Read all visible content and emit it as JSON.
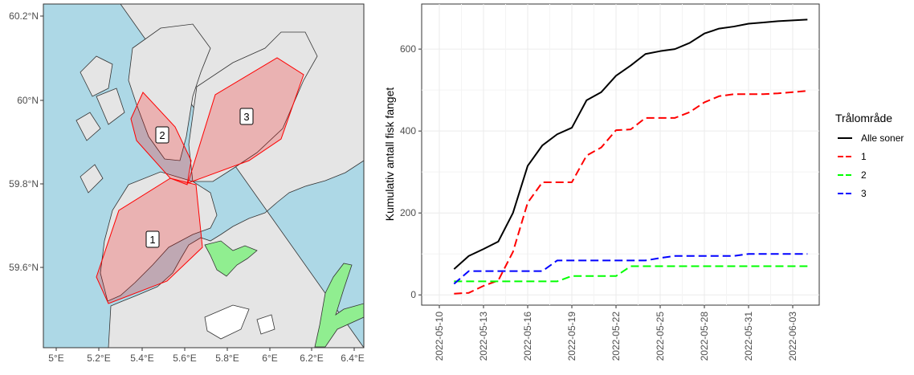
{
  "map": {
    "lat_ticks": [
      "60.2°N",
      "60°N",
      "59.8°N",
      "59.6°N"
    ],
    "lon_ticks": [
      "5°E",
      "5.2°E",
      "5.4°E",
      "5.6°E",
      "5.8°E",
      "6°E",
      "6.2°E",
      "6.4°E"
    ],
    "zones": [
      {
        "label": "1"
      },
      {
        "label": "2"
      },
      {
        "label": "3"
      }
    ],
    "colors": {
      "sea": "#add8e6",
      "land": "#e5e5e5",
      "zone_fill": "#e8a0a0",
      "zone_stroke": "#ff0000",
      "green": "#90ee90"
    }
  },
  "chart_data": {
    "type": "line",
    "title": "",
    "xlabel": "",
    "ylabel": "Kumulativ antall fisk fanget",
    "x_ticks": [
      "2022-05-10",
      "2022-05-13",
      "2022-05-16",
      "2022-05-19",
      "2022-05-22",
      "2022-05-25",
      "2022-05-28",
      "2022-05-31",
      "2022-06-03"
    ],
    "y_ticks": [
      0,
      200,
      400,
      600
    ],
    "xlim": [
      -1.2,
      25.8
    ],
    "ylim": [
      -25,
      710
    ],
    "legend": {
      "title": "Trålområde",
      "position": "right"
    },
    "series": [
      {
        "name": "Alle soner",
        "color": "#000000",
        "dash": "solid",
        "x": [
          1,
          2,
          3,
          4,
          5,
          6,
          7,
          8,
          9,
          10,
          11,
          12,
          13,
          14,
          15,
          16,
          17,
          18,
          19,
          20,
          21,
          22,
          23,
          24,
          25
        ],
        "y": [
          63,
          95,
          112,
          130,
          200,
          315,
          365,
          392,
          408,
          475,
          495,
          535,
          560,
          588,
          595,
          600,
          615,
          638,
          650,
          655,
          662,
          665,
          668,
          670,
          672
        ]
      },
      {
        "name": "1",
        "color": "#ff0000",
        "dash": "dashed",
        "x": [
          1,
          2,
          3,
          4,
          5,
          6,
          7,
          8,
          9,
          10,
          11,
          12,
          13,
          14,
          15,
          16,
          17,
          18,
          19,
          20,
          21,
          22,
          23,
          24,
          25
        ],
        "y": [
          3,
          5,
          22,
          35,
          105,
          225,
          275,
          275,
          275,
          340,
          360,
          402,
          404,
          432,
          432,
          432,
          446,
          470,
          485,
          490,
          490,
          490,
          492,
          495,
          498
        ]
      },
      {
        "name": "2",
        "color": "#00ff00",
        "dash": "dashed",
        "x": [
          1,
          2,
          3,
          4,
          5,
          6,
          7,
          8,
          9,
          10,
          11,
          12,
          13,
          14,
          15,
          16,
          17,
          18,
          19,
          20,
          21,
          22,
          23,
          24,
          25
        ],
        "y": [
          33,
          33,
          33,
          33,
          33,
          33,
          33,
          33,
          46,
          46,
          46,
          46,
          70,
          70,
          70,
          70,
          70,
          70,
          70,
          70,
          70,
          70,
          70,
          70,
          70
        ]
      },
      {
        "name": "3",
        "color": "#0000ff",
        "dash": "dashed",
        "x": [
          1,
          2,
          3,
          4,
          5,
          6,
          7,
          8,
          9,
          10,
          11,
          12,
          13,
          14,
          15,
          16,
          17,
          18,
          19,
          20,
          21,
          22,
          23,
          24,
          25
        ],
        "y": [
          27,
          58,
          58,
          58,
          58,
          58,
          58,
          84,
          84,
          84,
          84,
          84,
          84,
          84,
          90,
          95,
          95,
          95,
          95,
          95,
          100,
          100,
          100,
          100,
          100
        ]
      }
    ]
  }
}
